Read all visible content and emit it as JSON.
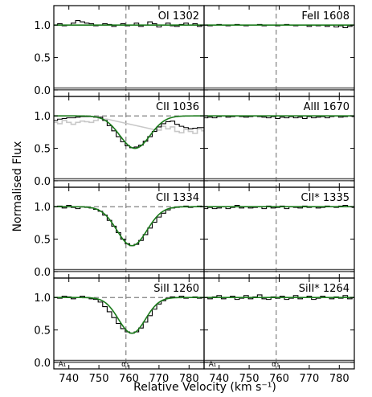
{
  "figure": {
    "ylabel": "Normalised Flux",
    "xlabel": "Relative Velocity (km s⁻¹)"
  },
  "chart_data": {
    "type": "line",
    "xlim": [
      735,
      785
    ],
    "ylim": [
      -0.1,
      1.3
    ],
    "x_ticks": [
      740,
      750,
      760,
      770,
      780
    ],
    "y_ticks": [
      0.0,
      0.5,
      1.0
    ],
    "y_tick_labels": [
      "0.0",
      "0.5",
      "1.0"
    ],
    "reference_velocity": 759,
    "continuum": 1.0,
    "layout": "4 rows x 2 columns",
    "colors": {
      "data": "#000000",
      "model": "#1a7a1a",
      "error": "#555555",
      "masked": "#c8c8c8",
      "guides": "#808080"
    },
    "panels": [
      {
        "ion": "OI 1302",
        "absorption": null,
        "data": [
          [
            735.5,
            1.0
          ],
          [
            737,
            1.02
          ],
          [
            738.5,
            0.99
          ],
          [
            740,
            1.0
          ],
          [
            741.5,
            1.03
          ],
          [
            743,
            1.07
          ],
          [
            744.5,
            1.05
          ],
          [
            746,
            1.03
          ],
          [
            747.5,
            1.02
          ],
          [
            749,
            0.99
          ],
          [
            750.5,
            1.0
          ],
          [
            752,
            1.02
          ],
          [
            753.5,
            1.01
          ],
          [
            755,
            0.98
          ],
          [
            756.5,
            1.0
          ],
          [
            758,
            1.02
          ],
          [
            759.5,
            0.99
          ],
          [
            761,
            1.0
          ],
          [
            762.5,
            1.03
          ],
          [
            764,
            0.98
          ],
          [
            765.5,
            1.0
          ],
          [
            767,
            1.05
          ],
          [
            768.5,
            1.02
          ],
          [
            770,
            0.97
          ],
          [
            771.5,
            1.0
          ],
          [
            773,
            1.03
          ],
          [
            774.5,
            0.99
          ],
          [
            776,
            0.98
          ],
          [
            777.5,
            1.01
          ],
          [
            779,
            1.03
          ],
          [
            780.5,
            1.0
          ],
          [
            782,
            1.02
          ],
          [
            783.5,
            0.98
          ],
          [
            785,
            1.0
          ]
        ],
        "annotations": []
      },
      {
        "ion": "FeII 1608",
        "absorption": null,
        "data": [
          [
            735.5,
            1.0
          ],
          [
            737,
            0.99
          ],
          [
            738.5,
            1.0
          ],
          [
            740,
            1.01
          ],
          [
            741.5,
            1.0
          ],
          [
            743,
            0.99
          ],
          [
            744.5,
            1.0
          ],
          [
            746,
            1.01
          ],
          [
            747.5,
            1.0
          ],
          [
            749,
            0.99
          ],
          [
            750.5,
            1.0
          ],
          [
            752,
            1.0
          ],
          [
            753.5,
            1.01
          ],
          [
            755,
            0.99
          ],
          [
            756.5,
            1.0
          ],
          [
            758,
            1.0
          ],
          [
            759.5,
            0.99
          ],
          [
            761,
            1.0
          ],
          [
            762.5,
            1.01
          ],
          [
            764,
            1.0
          ],
          [
            765.5,
            0.99
          ],
          [
            767,
            1.0
          ],
          [
            768.5,
            1.0
          ],
          [
            770,
            0.98
          ],
          [
            771.5,
            1.0
          ],
          [
            773,
            0.99
          ],
          [
            774.5,
            1.0
          ],
          [
            776,
            0.98
          ],
          [
            777.5,
            1.0
          ],
          [
            779,
            0.97
          ],
          [
            780.5,
            0.99
          ],
          [
            782,
            0.96
          ],
          [
            783.5,
            0.98
          ],
          [
            785,
            1.0
          ]
        ],
        "annotations": []
      },
      {
        "ion": "CII 1036",
        "absorption": {
          "center": 762,
          "width": 5,
          "depth": 0.5
        },
        "data": [
          [
            735.5,
            0.93
          ],
          [
            737,
            0.95
          ],
          [
            738.5,
            0.96
          ],
          [
            740,
            0.97
          ],
          [
            741.5,
            0.97
          ],
          [
            743,
            0.98
          ],
          [
            744.5,
            0.99
          ],
          [
            746,
            0.99
          ],
          [
            747.5,
            0.99
          ],
          [
            749,
            0.98
          ],
          [
            750.5,
            0.98
          ],
          [
            752,
            0.93
          ],
          [
            753.5,
            0.85
          ],
          [
            755,
            0.77
          ],
          [
            756.5,
            0.68
          ],
          [
            758,
            0.6
          ],
          [
            759.5,
            0.54
          ],
          [
            761,
            0.51
          ],
          [
            762.5,
            0.52
          ],
          [
            764,
            0.55
          ],
          [
            765.5,
            0.61
          ],
          [
            767,
            0.68
          ],
          [
            768.5,
            0.76
          ],
          [
            770,
            0.83
          ],
          [
            771.5,
            0.88
          ],
          [
            773,
            0.91
          ],
          [
            774.5,
            0.92
          ],
          [
            776,
            0.87
          ],
          [
            777.5,
            0.84
          ],
          [
            779,
            0.82
          ],
          [
            780.5,
            0.8
          ],
          [
            782,
            0.81
          ],
          [
            783.5,
            0.82
          ],
          [
            785,
            0.82
          ]
        ],
        "masked": [
          [
            735.5,
            0.9
          ],
          [
            737,
            0.88
          ],
          [
            738.5,
            0.93
          ],
          [
            740,
            0.9
          ],
          [
            741.5,
            0.87
          ],
          [
            743,
            0.9
          ],
          [
            744.5,
            0.92
          ],
          [
            746,
            0.91
          ],
          [
            747.5,
            0.9
          ],
          [
            749,
            0.93
          ],
          [
            750.5,
            0.97
          ],
          [
            752,
            0.95
          ],
          [
            770,
            0.78
          ],
          [
            771.5,
            0.84
          ],
          [
            773,
            0.8
          ],
          [
            774.5,
            0.83
          ],
          [
            776,
            0.76
          ],
          [
            777.5,
            0.74
          ],
          [
            779,
            0.79
          ],
          [
            780.5,
            0.76
          ],
          [
            782,
            0.73
          ],
          [
            783.5,
            0.8
          ],
          [
            785,
            0.77
          ]
        ],
        "annotations": []
      },
      {
        "ion": "AlII 1670",
        "absorption": null,
        "data": [
          [
            735.5,
            0.97
          ],
          [
            737,
            0.98
          ],
          [
            738.5,
            0.97
          ],
          [
            740,
            0.99
          ],
          [
            741.5,
            1.0
          ],
          [
            743,
            0.98
          ],
          [
            744.5,
            0.99
          ],
          [
            746,
            1.0
          ],
          [
            747.5,
            0.99
          ],
          [
            749,
            0.98
          ],
          [
            750.5,
            0.99
          ],
          [
            752,
            1.0
          ],
          [
            753.5,
            0.99
          ],
          [
            755,
            0.98
          ],
          [
            756.5,
            0.97
          ],
          [
            758,
            0.99
          ],
          [
            759.5,
            0.96
          ],
          [
            761,
            0.98
          ],
          [
            762.5,
            0.97
          ],
          [
            764,
            0.99
          ],
          [
            765.5,
            0.97
          ],
          [
            767,
            0.98
          ],
          [
            768.5,
            0.96
          ],
          [
            770,
            0.99
          ],
          [
            771.5,
            0.97
          ],
          [
            773,
            0.98
          ],
          [
            774.5,
            0.99
          ],
          [
            776,
            0.97
          ],
          [
            777.5,
            0.99
          ],
          [
            779,
            1.0
          ],
          [
            780.5,
            0.98
          ],
          [
            782,
            0.99
          ],
          [
            783.5,
            1.0
          ],
          [
            785,
            0.99
          ]
        ],
        "annotations": []
      },
      {
        "ion": "CII 1334",
        "absorption": {
          "center": 761,
          "width": 5,
          "depth": 0.6
        },
        "data": [
          [
            735.5,
            1.0
          ],
          [
            737,
            1.01
          ],
          [
            738.5,
            0.98
          ],
          [
            740,
            1.02
          ],
          [
            741.5,
            0.99
          ],
          [
            743,
            0.97
          ],
          [
            744.5,
            1.0
          ],
          [
            746,
            0.99
          ],
          [
            747.5,
            0.98
          ],
          [
            749,
            0.96
          ],
          [
            750.5,
            0.93
          ],
          [
            752,
            0.87
          ],
          [
            753.5,
            0.79
          ],
          [
            755,
            0.7
          ],
          [
            756.5,
            0.6
          ],
          [
            758,
            0.5
          ],
          [
            759.5,
            0.43
          ],
          [
            761,
            0.4
          ],
          [
            762.5,
            0.42
          ],
          [
            764,
            0.48
          ],
          [
            765.5,
            0.57
          ],
          [
            767,
            0.67
          ],
          [
            768.5,
            0.76
          ],
          [
            770,
            0.84
          ],
          [
            771.5,
            0.9
          ],
          [
            773,
            0.95
          ],
          [
            774.5,
            0.98
          ],
          [
            776,
            0.99
          ],
          [
            777.5,
            1.0
          ],
          [
            779,
            1.01
          ],
          [
            780.5,
            0.99
          ],
          [
            782,
            1.0
          ],
          [
            783.5,
            1.01
          ],
          [
            785,
            1.0
          ]
        ],
        "annotations": []
      },
      {
        "ion": "CII* 1335",
        "absorption": null,
        "data": [
          [
            735.5,
            0.97
          ],
          [
            737,
            0.99
          ],
          [
            738.5,
            0.97
          ],
          [
            740,
            0.98
          ],
          [
            741.5,
            1.0
          ],
          [
            743,
            0.97
          ],
          [
            744.5,
            0.99
          ],
          [
            746,
            1.02
          ],
          [
            747.5,
            0.98
          ],
          [
            749,
            1.0
          ],
          [
            750.5,
            0.98
          ],
          [
            752,
            0.99
          ],
          [
            753.5,
            1.0
          ],
          [
            755,
            0.97
          ],
          [
            756.5,
            1.01
          ],
          [
            758,
            0.98
          ],
          [
            759.5,
            0.99
          ],
          [
            761,
            1.01
          ],
          [
            762.5,
            0.97
          ],
          [
            764,
            1.0
          ],
          [
            765.5,
            0.99
          ],
          [
            767,
            0.98
          ],
          [
            768.5,
            1.01
          ],
          [
            770,
            0.99
          ],
          [
            771.5,
            1.0
          ],
          [
            773,
            0.98
          ],
          [
            774.5,
            0.99
          ],
          [
            776,
            1.01
          ],
          [
            777.5,
            1.0
          ],
          [
            779,
            0.99
          ],
          [
            780.5,
            1.01
          ],
          [
            782,
            1.02
          ],
          [
            783.5,
            1.0
          ],
          [
            785,
            0.99
          ]
        ],
        "annotations": []
      },
      {
        "ion": "SiII 1260",
        "absorption": {
          "center": 761,
          "width": 4.5,
          "depth": 0.55
        },
        "data": [
          [
            735.5,
            1.0
          ],
          [
            737,
            0.99
          ],
          [
            738.5,
            1.02
          ],
          [
            740,
            1.01
          ],
          [
            741.5,
            0.98
          ],
          [
            743,
            1.0
          ],
          [
            744.5,
            1.02
          ],
          [
            746,
            1.0
          ],
          [
            747.5,
            0.98
          ],
          [
            749,
            0.97
          ],
          [
            750.5,
            0.93
          ],
          [
            752,
            0.86
          ],
          [
            753.5,
            0.78
          ],
          [
            755,
            0.69
          ],
          [
            756.5,
            0.6
          ],
          [
            758,
            0.52
          ],
          [
            759.5,
            0.47
          ],
          [
            761,
            0.45
          ],
          [
            762.5,
            0.47
          ],
          [
            764,
            0.53
          ],
          [
            765.5,
            0.62
          ],
          [
            767,
            0.72
          ],
          [
            768.5,
            0.82
          ],
          [
            770,
            0.9
          ],
          [
            771.5,
            0.95
          ],
          [
            773,
            0.99
          ],
          [
            774.5,
            1.01
          ],
          [
            776,
            1.0
          ],
          [
            777.5,
            1.02
          ],
          [
            779,
            0.99
          ],
          [
            780.5,
            1.0
          ],
          [
            782,
            1.01
          ],
          [
            783.5,
            0.99
          ],
          [
            785,
            1.0
          ]
        ],
        "annotations": [
          {
            "text": "A₁",
            "x": 736.5
          },
          {
            "text": "α₁",
            "x": 757.5
          }
        ]
      },
      {
        "ion": "SiII* 1264",
        "absorption": null,
        "data": [
          [
            735.5,
            1.0
          ],
          [
            737,
            0.98
          ],
          [
            738.5,
            1.01
          ],
          [
            740,
            1.03
          ],
          [
            741.5,
            0.98
          ],
          [
            743,
            1.0
          ],
          [
            744.5,
            1.02
          ],
          [
            746,
            0.97
          ],
          [
            747.5,
            0.99
          ],
          [
            749,
            1.03
          ],
          [
            750.5,
            0.98
          ],
          [
            752,
            1.01
          ],
          [
            753.5,
            1.04
          ],
          [
            755,
            0.98
          ],
          [
            756.5,
            0.97
          ],
          [
            758,
            1.01
          ],
          [
            759.5,
            0.99
          ],
          [
            761,
            1.02
          ],
          [
            762.5,
            0.97
          ],
          [
            764,
            0.99
          ],
          [
            765.5,
            1.03
          ],
          [
            767,
            0.98
          ],
          [
            768.5,
            1.0
          ],
          [
            770,
            1.02
          ],
          [
            771.5,
            0.97
          ],
          [
            773,
            0.99
          ],
          [
            774.5,
            1.02
          ],
          [
            776,
            1.0
          ],
          [
            777.5,
            0.98
          ],
          [
            779,
            1.01
          ],
          [
            780.5,
            0.99
          ],
          [
            782,
            1.03
          ],
          [
            783.5,
            0.98
          ],
          [
            785,
            1.0
          ]
        ],
        "annotations": [
          {
            "text": "A₁",
            "x": 736.5
          },
          {
            "text": "α₁",
            "x": 757.5
          }
        ]
      }
    ]
  }
}
